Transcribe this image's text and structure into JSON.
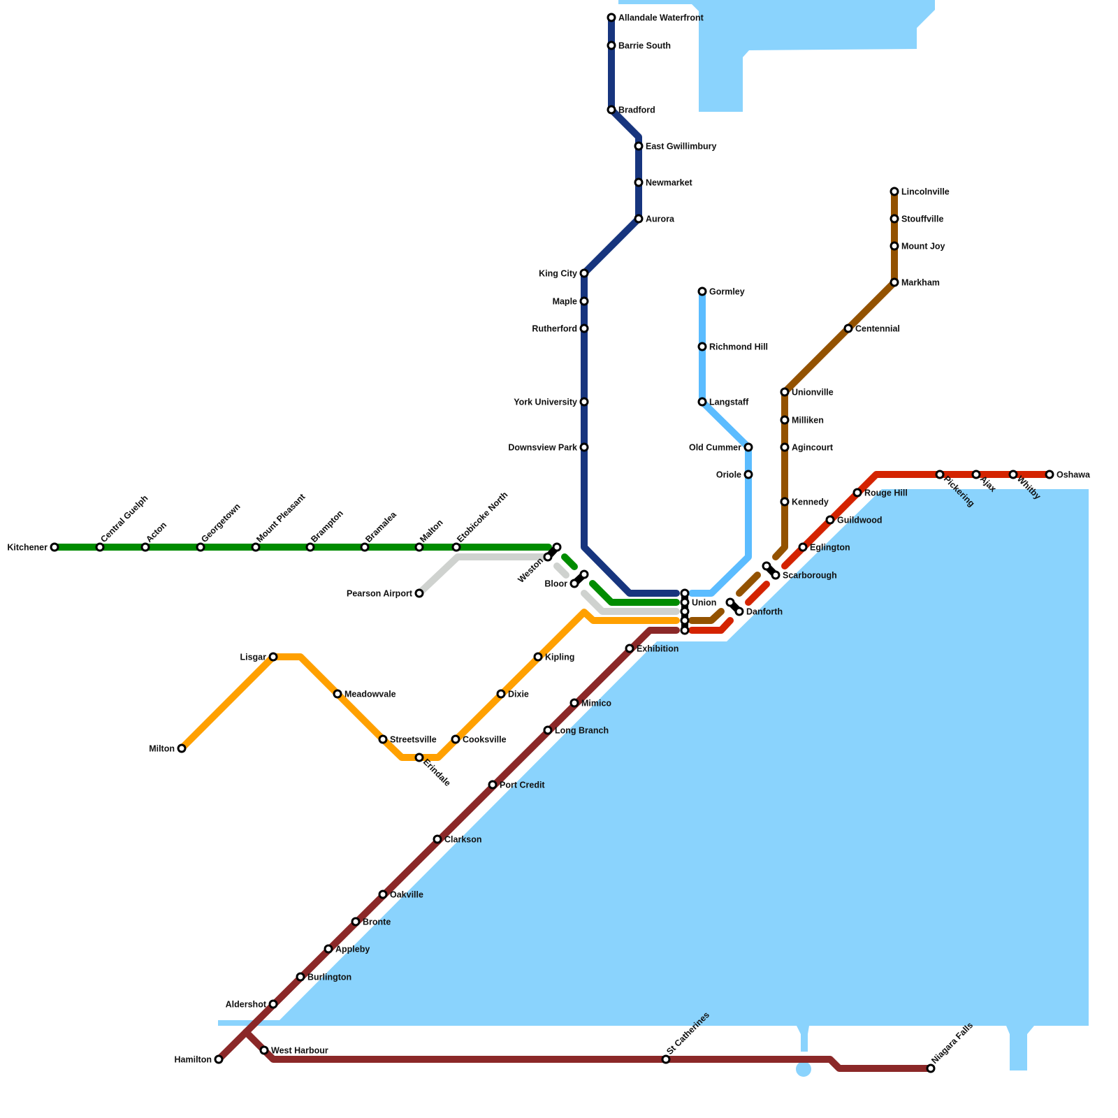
{
  "colors": {
    "water": "#8ad3fd",
    "kitchener_line": "#008c00",
    "up_express": "#cfd2cf",
    "milton_line": "#ffa000",
    "lakeshore_west": "#8b2828",
    "barrie_line": "#17357e",
    "richmond_hill_line": "#5bbcff",
    "stouffville_line": "#935200",
    "lakeshore_east": "#d42300"
  },
  "stations": [
    "Kitchener",
    "Central Guelph",
    "Acton",
    "Georgetown",
    "Mount Pleasant",
    "Brampton",
    "Bramalea",
    "Malton",
    "Etobicoke North",
    "Weston",
    "Bloor",
    "Pearson Airport",
    "Milton",
    "Lisgar",
    "Meadowvale",
    "Streetsville",
    "Erindale",
    "Cooksville",
    "Dixie",
    "Kipling",
    "Hamilton",
    "Aldershot",
    "Burlington",
    "Appleby",
    "Bronte",
    "Oakville",
    "Clarkson",
    "Port Credit",
    "Long Branch",
    "Mimico",
    "Exhibition",
    "West Harbour",
    "St Catherines",
    "Niagara Falls",
    "Allandale Waterfront",
    "Barrie South",
    "Bradford",
    "East Gwillimbury",
    "Newmarket",
    "Aurora",
    "King City",
    "Maple",
    "Rutherford",
    "York University",
    "Downsview Park",
    "Gormley",
    "Richmond Hill",
    "Langstaff",
    "Old Cummer",
    "Oriole",
    "Union",
    "Danforth",
    "Scarborough",
    "Kennedy",
    "Agincourt",
    "Milliken",
    "Unionville",
    "Centennial",
    "Markham",
    "Mount Joy",
    "Stouffville",
    "Lincolnville",
    "Eglington",
    "Guildwood",
    "Rouge Hill",
    "Pickering",
    "Ajax",
    "Whitby",
    "Oshawa"
  ]
}
